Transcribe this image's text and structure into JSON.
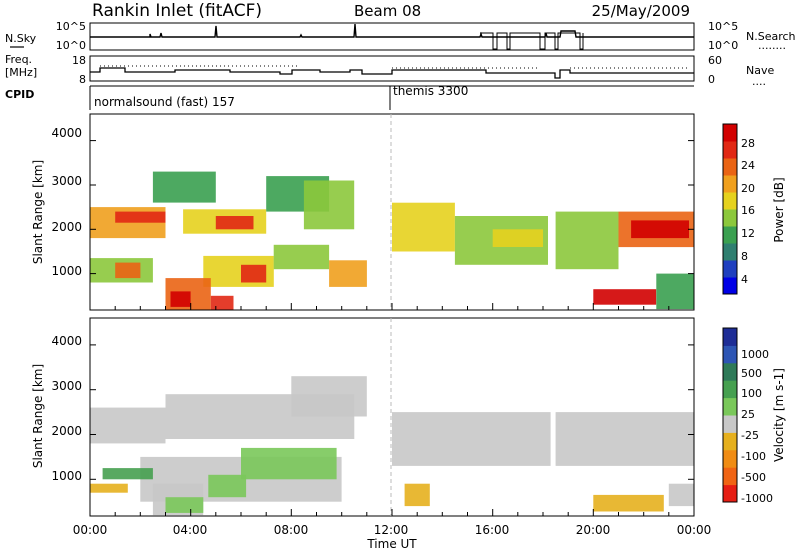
{
  "header": {
    "station": "Rankin Inlet (fitACF)",
    "beam": "Beam 08",
    "date": "25/May/2009"
  },
  "side_labels": {
    "nsky": "N.Sky",
    "freq_line1": "Freq.",
    "freq_line2": "[MHz]",
    "cpid": "CPID",
    "nsearch": "N.Search",
    "nave": "Nave",
    "dots": "........",
    "dots_short": "...."
  },
  "nsky_panel": {
    "ticks": [
      "10^5",
      "10^0"
    ]
  },
  "freq_panel": {
    "left_ticks": [
      "18",
      "8"
    ],
    "right_ticks": [
      "60",
      "0"
    ]
  },
  "cpid_panel": {
    "modes": [
      {
        "label": "normalsound (fast) 157",
        "start_hour": 0
      },
      {
        "label": "themis 3300",
        "start_hour": 12
      }
    ]
  },
  "axes": {
    "x_ticks": [
      "00:00",
      "04:00",
      "08:00",
      "12:00",
      "16:00",
      "20:00",
      "00:00"
    ],
    "x_label": "Time UT",
    "y_label": "Slant Range [km]",
    "y_ticks": [
      "1000",
      "2000",
      "3000",
      "4000"
    ]
  },
  "colors": {
    "power": [
      "#0000e6",
      "#1f3fbf",
      "#2f7f70",
      "#3aa050",
      "#8cc83c",
      "#e6d21e",
      "#f0a01e",
      "#ea6414",
      "#e12814",
      "#d20000"
    ],
    "velocity": [
      "#1e2d96",
      "#2d55b4",
      "#2e7a58",
      "#46a050",
      "#7ac85a",
      "#c8c8c8",
      "#e6b01e",
      "#f08c14",
      "#f06414",
      "#e61e14"
    ]
  },
  "chart_data": [
    {
      "type": "heatmap",
      "title": "Power",
      "xlabel": "Time UT",
      "ylabel": "Slant Range [km]",
      "x_range_hours": [
        0,
        24
      ],
      "ylim_km": [
        180,
        4600
      ],
      "colorbar": {
        "label": "Power [dB]",
        "ticks": [
          "4",
          "8",
          "12",
          "16",
          "20",
          "24",
          "28"
        ],
        "range": [
          0,
          30
        ]
      },
      "regions": [
        {
          "start_hour": 0.0,
          "end_hour": 3.0,
          "min_km": 1800,
          "max_km": 2500,
          "value": 18
        },
        {
          "start_hour": 1.0,
          "end_hour": 3.0,
          "min_km": 2150,
          "max_km": 2400,
          "value": 24
        },
        {
          "start_hour": 2.5,
          "end_hour": 5.0,
          "min_km": 2600,
          "max_km": 3300,
          "value": 9
        },
        {
          "start_hour": 3.7,
          "end_hour": 7.0,
          "min_km": 1900,
          "max_km": 2450,
          "value": 17
        },
        {
          "start_hour": 5.0,
          "end_hour": 6.5,
          "min_km": 2000,
          "max_km": 2300,
          "value": 24
        },
        {
          "start_hour": 7.0,
          "end_hour": 9.5,
          "min_km": 2400,
          "max_km": 3200,
          "value": 10
        },
        {
          "start_hour": 8.5,
          "end_hour": 10.5,
          "min_km": 2000,
          "max_km": 3100,
          "value": 12
        },
        {
          "start_hour": 0.0,
          "end_hour": 2.5,
          "min_km": 800,
          "max_km": 1350,
          "value": 14
        },
        {
          "start_hour": 1.0,
          "end_hour": 2.0,
          "min_km": 900,
          "max_km": 1250,
          "value": 22
        },
        {
          "start_hour": 4.5,
          "end_hour": 7.3,
          "min_km": 700,
          "max_km": 1400,
          "value": 16
        },
        {
          "start_hour": 6.0,
          "end_hour": 7.0,
          "min_km": 800,
          "max_km": 1200,
          "value": 25
        },
        {
          "start_hour": 7.3,
          "end_hour": 9.5,
          "min_km": 1100,
          "max_km": 1650,
          "value": 14
        },
        {
          "start_hour": 3.0,
          "end_hour": 4.8,
          "min_km": 180,
          "max_km": 900,
          "value": 22
        },
        {
          "start_hour": 3.2,
          "end_hour": 4.0,
          "min_km": 250,
          "max_km": 600,
          "value": 28
        },
        {
          "start_hour": 4.8,
          "end_hour": 5.7,
          "min_km": 180,
          "max_km": 500,
          "value": 24
        },
        {
          "start_hour": 9.5,
          "end_hour": 11.0,
          "min_km": 700,
          "max_km": 1300,
          "value": 18
        },
        {
          "start_hour": 12.0,
          "end_hour": 14.5,
          "min_km": 1500,
          "max_km": 2600,
          "value": 15
        },
        {
          "start_hour": 14.5,
          "end_hour": 18.2,
          "min_km": 1200,
          "max_km": 2300,
          "value": 13
        },
        {
          "start_hour": 16.0,
          "end_hour": 18.0,
          "min_km": 1600,
          "max_km": 2000,
          "value": 17
        },
        {
          "start_hour": 18.5,
          "end_hour": 21.0,
          "min_km": 1100,
          "max_km": 2400,
          "value": 12
        },
        {
          "start_hour": 21.0,
          "end_hour": 24.0,
          "min_km": 1600,
          "max_km": 2400,
          "value": 22
        },
        {
          "start_hour": 21.5,
          "end_hour": 23.8,
          "min_km": 1800,
          "max_km": 2200,
          "value": 27
        },
        {
          "start_hour": 20.0,
          "end_hour": 22.5,
          "min_km": 300,
          "max_km": 650,
          "value": 27
        },
        {
          "start_hour": 22.5,
          "end_hour": 24.0,
          "min_km": 200,
          "max_km": 1000,
          "value": 10
        }
      ]
    },
    {
      "type": "heatmap",
      "title": "Velocity",
      "xlabel": "Time UT",
      "ylabel": "Slant Range [km]",
      "x_range_hours": [
        0,
        24
      ],
      "ylim_km": [
        180,
        4600
      ],
      "colorbar": {
        "label": "Velocity [m s-1]",
        "ticks": [
          "1000",
          "500",
          "100",
          "25",
          "-25",
          "-100",
          "-500",
          "-1000"
        ],
        "range": [
          1200,
          -1200
        ]
      },
      "regions": [
        {
          "start_hour": 0.0,
          "end_hour": 3.0,
          "min_km": 1800,
          "max_km": 2600,
          "value": 0
        },
        {
          "start_hour": 3.0,
          "end_hour": 10.5,
          "min_km": 1900,
          "max_km": 2900,
          "value": 0
        },
        {
          "start_hour": 8.0,
          "end_hour": 11.0,
          "min_km": 2400,
          "max_km": 3300,
          "value": 0
        },
        {
          "start_hour": 12.0,
          "end_hour": 18.3,
          "min_km": 1300,
          "max_km": 2500,
          "value": 0
        },
        {
          "start_hour": 18.5,
          "end_hour": 24.0,
          "min_km": 1300,
          "max_km": 2500,
          "value": 0
        },
        {
          "start_hour": 2.0,
          "end_hour": 10.0,
          "min_km": 500,
          "max_km": 1500,
          "value": 0
        },
        {
          "start_hour": 6.0,
          "end_hour": 9.8,
          "min_km": 1000,
          "max_km": 1700,
          "value": 160
        },
        {
          "start_hour": 4.7,
          "end_hour": 6.2,
          "min_km": 600,
          "max_km": 1100,
          "value": 160
        },
        {
          "start_hour": 0.5,
          "end_hour": 2.5,
          "min_km": 1000,
          "max_km": 1250,
          "value": 300
        },
        {
          "start_hour": 0.0,
          "end_hour": 1.5,
          "min_km": 700,
          "max_km": 900,
          "value": -400
        },
        {
          "start_hour": 2.5,
          "end_hour": 4.5,
          "min_km": 200,
          "max_km": 900,
          "value": 0
        },
        {
          "start_hour": 3.0,
          "end_hour": 4.5,
          "min_km": 250,
          "max_km": 600,
          "value": 180
        },
        {
          "start_hour": 12.5,
          "end_hour": 13.5,
          "min_km": 400,
          "max_km": 900,
          "value": -300
        },
        {
          "start_hour": 20.0,
          "end_hour": 22.8,
          "min_km": 280,
          "max_km": 650,
          "value": -400
        },
        {
          "start_hour": 23.0,
          "end_hour": 24.0,
          "min_km": 400,
          "max_km": 900,
          "value": 0
        }
      ]
    }
  ]
}
